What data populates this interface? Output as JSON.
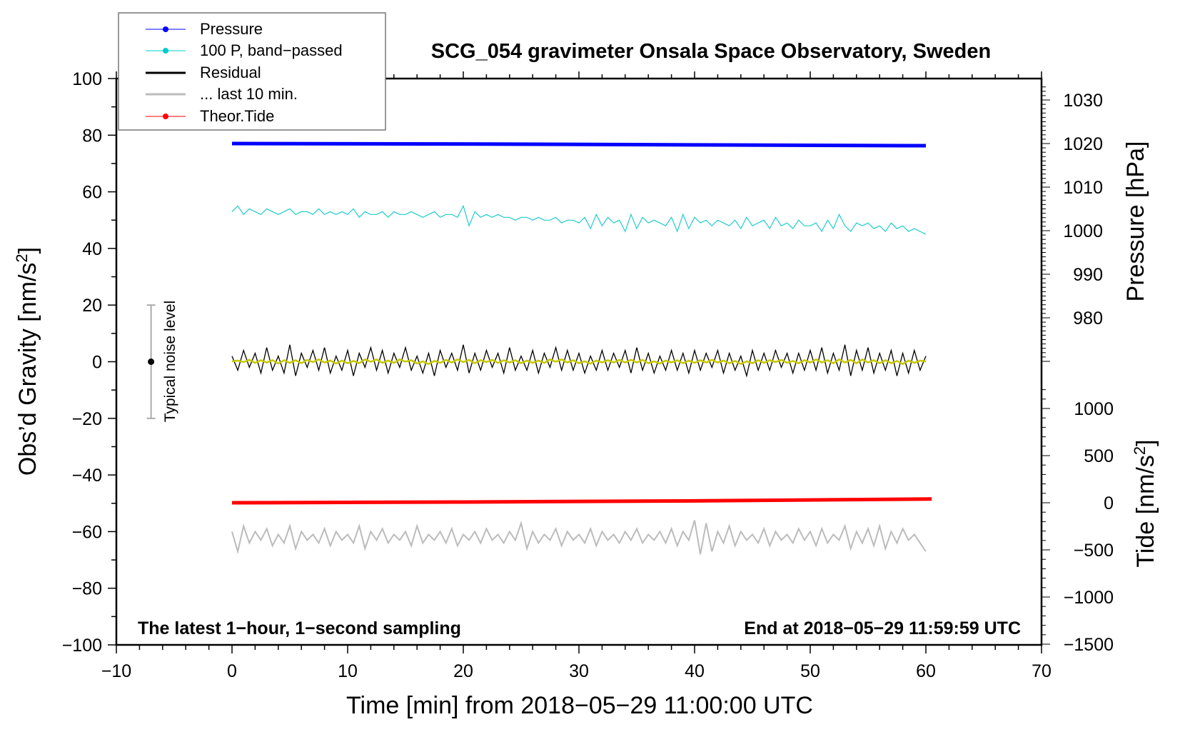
{
  "chart_data": {
    "type": "line",
    "title": "SCG_054 gravimeter Onsala Space Observatory, Sweden",
    "xlabel": "Time [min] from 2018−05−29 11:00:00 UTC",
    "ylabel": "Obs’d Gravity [nm/s",
    "ylabel_sup": "2",
    "ylabel_end": "]",
    "y2label": "Pressure [hPa]",
    "y3label": "Tide [nm/s",
    "y3label_sup": "2",
    "y3label_end": "]",
    "xlim": [
      -10,
      70
    ],
    "ylim": [
      -100,
      100
    ],
    "y2lim": [
      970,
      1045
    ],
    "y3lim": [
      -1500,
      1500
    ],
    "xticks": [
      "−10",
      "0",
      "10",
      "20",
      "30",
      "40",
      "50",
      "60",
      "70"
    ],
    "yticks": [
      "100",
      "80",
      "60",
      "40",
      "20",
      "0",
      "−20",
      "−40",
      "−60",
      "−80",
      "−100"
    ],
    "y2ticks": [
      "1030",
      "1020",
      "1010",
      "1000",
      "990",
      "980"
    ],
    "y3ticks": [
      "1000",
      "500",
      "0",
      "−500",
      "−1000",
      "−1500"
    ],
    "annotation_left": "The latest 1−hour, 1−second sampling",
    "annotation_right": "End at 2018−05−29 11:59:59 UTC",
    "noise_label": "Typical noise level",
    "noise_bar": {
      "x": -7,
      "center": 0,
      "half_range": 20
    },
    "legend": {
      "placement": "top-left",
      "entries": [
        {
          "label": "Pressure",
          "color": "#0000ff"
        },
        {
          "label": "100 P, band−passed",
          "color": "#00cccc"
        },
        {
          "label": "Residual",
          "color": "#000000"
        },
        {
          "label": "... last 10 min.",
          "color": "#bbbbbb"
        },
        {
          "label": "Theor.Tide",
          "color": "#ff0000"
        }
      ]
    },
    "series": {
      "pressure": {
        "axis": "y2",
        "x": [
          0,
          20,
          40,
          60
        ],
        "values": [
          1020.0,
          1019.9,
          1019.7,
          1019.5
        ]
      },
      "tide": {
        "axis": "y3",
        "x": [
          0,
          20,
          40,
          60.5
        ],
        "values": [
          0,
          8,
          20,
          40
        ]
      },
      "sample_step_min": 0.5,
      "band_passed": [
        53,
        55,
        52,
        54,
        53,
        52,
        54,
        53,
        52,
        53,
        54,
        52,
        53,
        53,
        52,
        54,
        52,
        53,
        52,
        53,
        52,
        54,
        51,
        53,
        52,
        52,
        53,
        51,
        53,
        52,
        52,
        53,
        52,
        51,
        52,
        53,
        51,
        52,
        52,
        51,
        55,
        48,
        53,
        51,
        52,
        51,
        52,
        51,
        51,
        50,
        51,
        51,
        50,
        51,
        50,
        50,
        51,
        49,
        50,
        50,
        49,
        51,
        47,
        52,
        48,
        51,
        49,
        50,
        46,
        52,
        47,
        51,
        49,
        50,
        49,
        48,
        51,
        46,
        52,
        47,
        51,
        49,
        50,
        48,
        50,
        49,
        48,
        50,
        47,
        51,
        48,
        49,
        50,
        47,
        51,
        48,
        49,
        47,
        50,
        48,
        48,
        49,
        46,
        50,
        47,
        52,
        48,
        46,
        49,
        48,
        49,
        47,
        48,
        46,
        49,
        47,
        48,
        46,
        47,
        46,
        45
      ],
      "residual": [
        2,
        -3,
        4,
        -2,
        3,
        -4,
        5,
        -3,
        2,
        -4,
        6,
        -5,
        3,
        -2,
        4,
        -3,
        5,
        -4,
        2,
        -3,
        4,
        -5,
        3,
        -2,
        5,
        -3,
        4,
        -4,
        3,
        -2,
        5,
        -3,
        2,
        -4,
        3,
        -5,
        4,
        -2,
        3,
        -3,
        6,
        -4,
        3,
        -3,
        4,
        -2,
        3,
        -4,
        5,
        -3,
        2,
        -3,
        4,
        -4,
        3,
        -2,
        5,
        -3,
        4,
        -3,
        3,
        -4,
        2,
        -3,
        4,
        -3,
        3,
        -2,
        4,
        -4,
        5,
        -3,
        3,
        -4,
        2,
        -3,
        4,
        -3,
        3,
        -4,
        4,
        -3,
        3,
        -2,
        4,
        -4,
        3,
        -3,
        2,
        -5,
        4,
        -3,
        3,
        -3,
        4,
        -2,
        3,
        -4,
        3,
        -3,
        4,
        -3,
        5,
        -4,
        3,
        -3,
        6,
        -5,
        4,
        -3,
        5,
        -4,
        3,
        -3,
        4,
        -5,
        3,
        -4,
        4,
        -3,
        2
      ],
      "last10": [
        -60,
        -67,
        -58,
        -64,
        -60,
        -63,
        -59,
        -65,
        -61,
        -64,
        -58,
        -66,
        -60,
        -63,
        -61,
        -64,
        -59,
        -65,
        -60,
        -63,
        -61,
        -64,
        -58,
        -66,
        -60,
        -63,
        -59,
        -64,
        -61,
        -63,
        -60,
        -65,
        -58,
        -64,
        -61,
        -63,
        -60,
        -64,
        -59,
        -65,
        -61,
        -63,
        -60,
        -64,
        -59,
        -63,
        -61,
        -64,
        -60,
        -63,
        -57,
        -66,
        -60,
        -64,
        -61,
        -63,
        -59,
        -65,
        -60,
        -63,
        -61,
        -64,
        -59,
        -65,
        -60,
        -63,
        -61,
        -64,
        -60,
        -63,
        -59,
        -64,
        -61,
        -63,
        -60,
        -64,
        -59,
        -65,
        -60,
        -63,
        -56,
        -68,
        -57,
        -67,
        -60,
        -64,
        -58,
        -65,
        -60,
        -63,
        -61,
        -64,
        -59,
        -65,
        -60,
        -63,
        -61,
        -64,
        -59,
        -63,
        -60,
        -65,
        -59,
        -64,
        -61,
        -63,
        -58,
        -66,
        -60,
        -64,
        -59,
        -65,
        -58,
        -66,
        -60,
        -64,
        -59,
        -63,
        -61,
        -64,
        -67
      ]
    }
  }
}
